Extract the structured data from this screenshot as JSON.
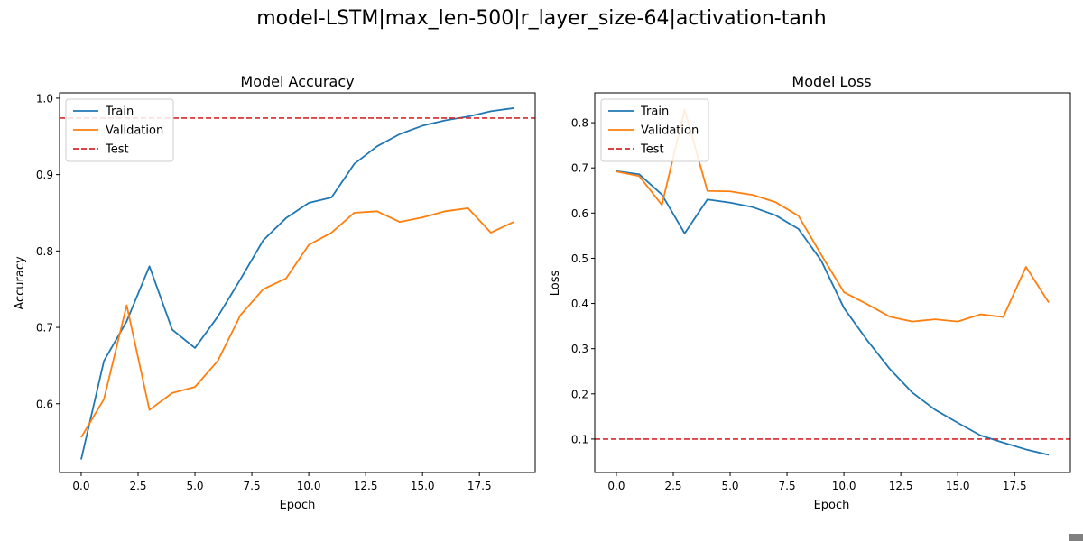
{
  "figure": {
    "suptitle": "model-LSTM|max_len-500|r_layer_size-64|activation-tanh"
  },
  "colors": {
    "train": "#1f77b4",
    "validation": "#ff7f0e",
    "test": "#d62728"
  },
  "chart_data": [
    {
      "type": "line",
      "title": "Model Accuracy",
      "xlabel": "Epoch",
      "ylabel": "Accuracy",
      "xlim": [
        -0.95,
        19.95
      ],
      "ylim": [
        0.51,
        1.007
      ],
      "xticks": [
        0.0,
        2.5,
        5.0,
        7.5,
        10.0,
        12.5,
        15.0,
        17.5
      ],
      "xtick_labels": [
        "0.0",
        "2.5",
        "5.0",
        "7.5",
        "10.0",
        "12.5",
        "15.0",
        "17.5"
      ],
      "yticks": [
        0.6,
        0.7,
        0.8,
        0.9,
        1.0
      ],
      "ytick_labels": [
        "0.6",
        "0.7",
        "0.8",
        "0.9",
        "1.0"
      ],
      "legend": "upper-left",
      "grid": false,
      "x": [
        0,
        1,
        2,
        3,
        4,
        5,
        6,
        7,
        8,
        9,
        10,
        11,
        12,
        13,
        14,
        15,
        16,
        17,
        18,
        19
      ],
      "series": [
        {
          "name": "Train",
          "color": "#1f77b4",
          "style": "solid",
          "values": [
            0.527,
            0.656,
            0.708,
            0.78,
            0.697,
            0.673,
            0.714,
            0.763,
            0.814,
            0.843,
            0.863,
            0.87,
            0.914,
            0.937,
            0.953,
            0.964,
            0.971,
            0.976,
            0.983,
            0.987
          ]
        },
        {
          "name": "Validation",
          "color": "#ff7f0e",
          "style": "solid",
          "values": [
            0.556,
            0.606,
            0.729,
            0.592,
            0.614,
            0.622,
            0.656,
            0.716,
            0.75,
            0.764,
            0.808,
            0.824,
            0.85,
            0.852,
            0.838,
            0.844,
            0.852,
            0.856,
            0.824,
            0.838
          ]
        },
        {
          "name": "Test",
          "color": "#d62728",
          "style": "dashed",
          "hline": 0.974
        }
      ]
    },
    {
      "type": "line",
      "title": "Model Loss",
      "xlabel": "Epoch",
      "ylabel": "Loss",
      "xlim": [
        -0.95,
        19.95
      ],
      "ylim": [
        0.026,
        0.866
      ],
      "xticks": [
        0.0,
        2.5,
        5.0,
        7.5,
        10.0,
        12.5,
        15.0,
        17.5
      ],
      "xtick_labels": [
        "0.0",
        "2.5",
        "5.0",
        "7.5",
        "10.0",
        "12.5",
        "15.0",
        "17.5"
      ],
      "yticks": [
        0.1,
        0.2,
        0.3,
        0.4,
        0.5,
        0.6,
        0.7,
        0.8
      ],
      "ytick_labels": [
        "0.1",
        "0.2",
        "0.3",
        "0.4",
        "0.5",
        "0.6",
        "0.7",
        "0.8"
      ],
      "legend": "upper-left",
      "grid": false,
      "x": [
        0,
        1,
        2,
        3,
        4,
        5,
        6,
        7,
        8,
        9,
        10,
        11,
        12,
        13,
        14,
        15,
        16,
        17,
        18,
        19
      ],
      "series": [
        {
          "name": "Train",
          "color": "#1f77b4",
          "style": "solid",
          "values": [
            0.693,
            0.686,
            0.641,
            0.555,
            0.63,
            0.623,
            0.613,
            0.595,
            0.565,
            0.495,
            0.39,
            0.32,
            0.256,
            0.203,
            0.165,
            0.136,
            0.108,
            0.092,
            0.077,
            0.065
          ]
        },
        {
          "name": "Validation",
          "color": "#ff7f0e",
          "style": "solid",
          "values": [
            0.692,
            0.682,
            0.618,
            0.829,
            0.649,
            0.648,
            0.64,
            0.624,
            0.594,
            0.508,
            0.425,
            0.399,
            0.371,
            0.36,
            0.365,
            0.36,
            0.376,
            0.37,
            0.481,
            0.402
          ]
        },
        {
          "name": "Test",
          "color": "#d62728",
          "style": "dashed",
          "hline": 0.1
        }
      ]
    }
  ]
}
